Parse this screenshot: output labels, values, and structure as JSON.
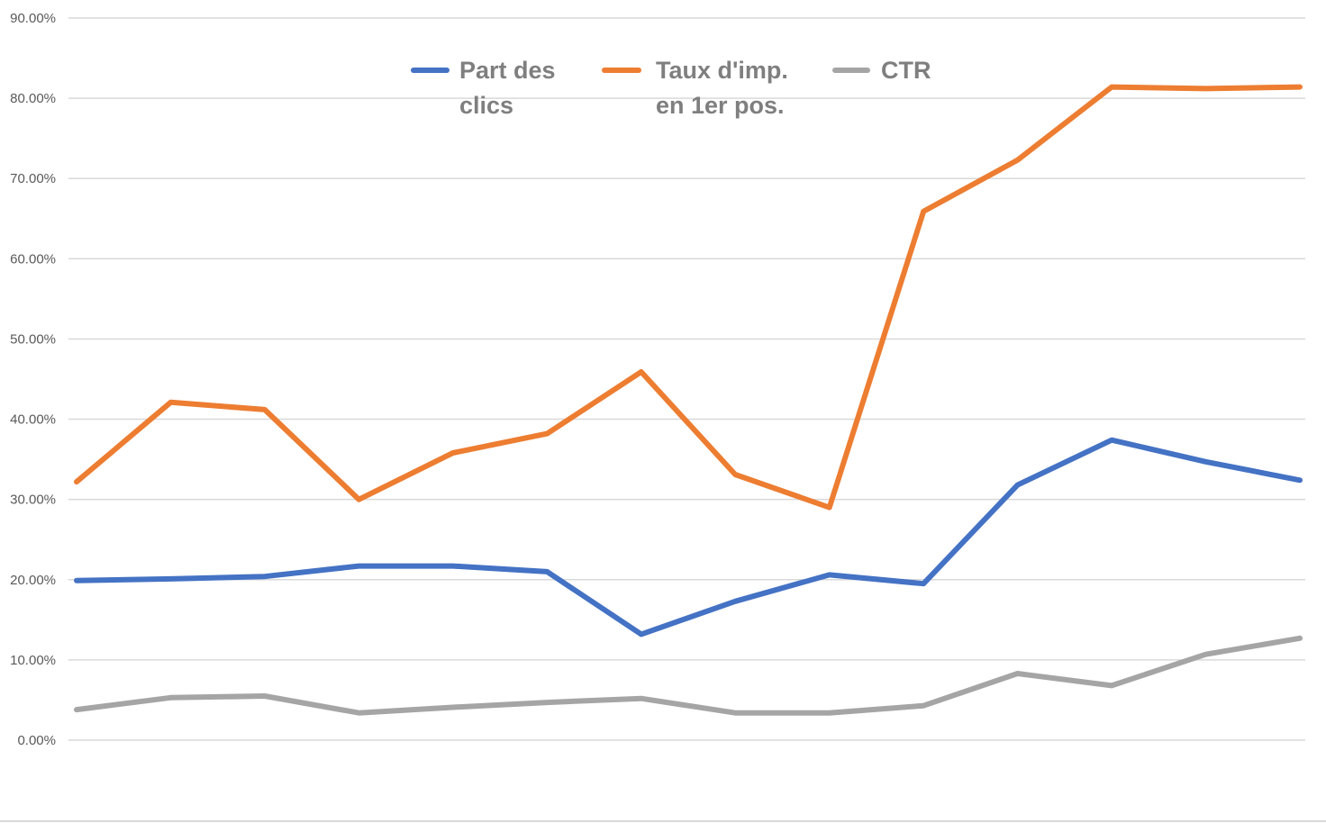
{
  "chart_data": {
    "type": "line",
    "title": "",
    "xlabel": "",
    "ylabel": "",
    "ylim": [
      0,
      90
    ],
    "yticks": [
      "0.00%",
      "10.00%",
      "20.00%",
      "30.00%",
      "40.00%",
      "50.00%",
      "60.00%",
      "70.00%",
      "80.00%",
      "90.00%"
    ],
    "x": [
      1,
      2,
      3,
      4,
      5,
      6,
      7,
      8,
      9,
      10,
      11,
      12,
      13,
      14
    ],
    "grid": true,
    "legend_position": "top-center",
    "series": [
      {
        "name": "Part des clics",
        "legend_lines": [
          "Part des",
          "clics"
        ],
        "color": "#4472c4",
        "values": [
          19.9,
          20.1,
          20.4,
          21.7,
          21.7,
          21.0,
          13.2,
          17.3,
          20.6,
          19.5,
          31.8,
          37.4,
          34.7,
          32.4
        ]
      },
      {
        "name": "Taux d'imp. en 1er pos.",
        "legend_lines": [
          "Taux d'imp.",
          "en 1er pos."
        ],
        "color": "#ed7d31",
        "values": [
          32.2,
          42.1,
          41.2,
          30.0,
          35.8,
          38.2,
          45.9,
          33.1,
          29.0,
          65.9,
          72.3,
          81.4,
          81.2,
          81.4
        ]
      },
      {
        "name": "CTR",
        "legend_lines": [
          "CTR"
        ],
        "color": "#a5a5a5",
        "values": [
          3.8,
          5.3,
          5.5,
          3.4,
          4.1,
          4.7,
          5.2,
          3.4,
          3.4,
          4.3,
          8.3,
          6.8,
          10.7,
          12.7
        ]
      }
    ]
  }
}
